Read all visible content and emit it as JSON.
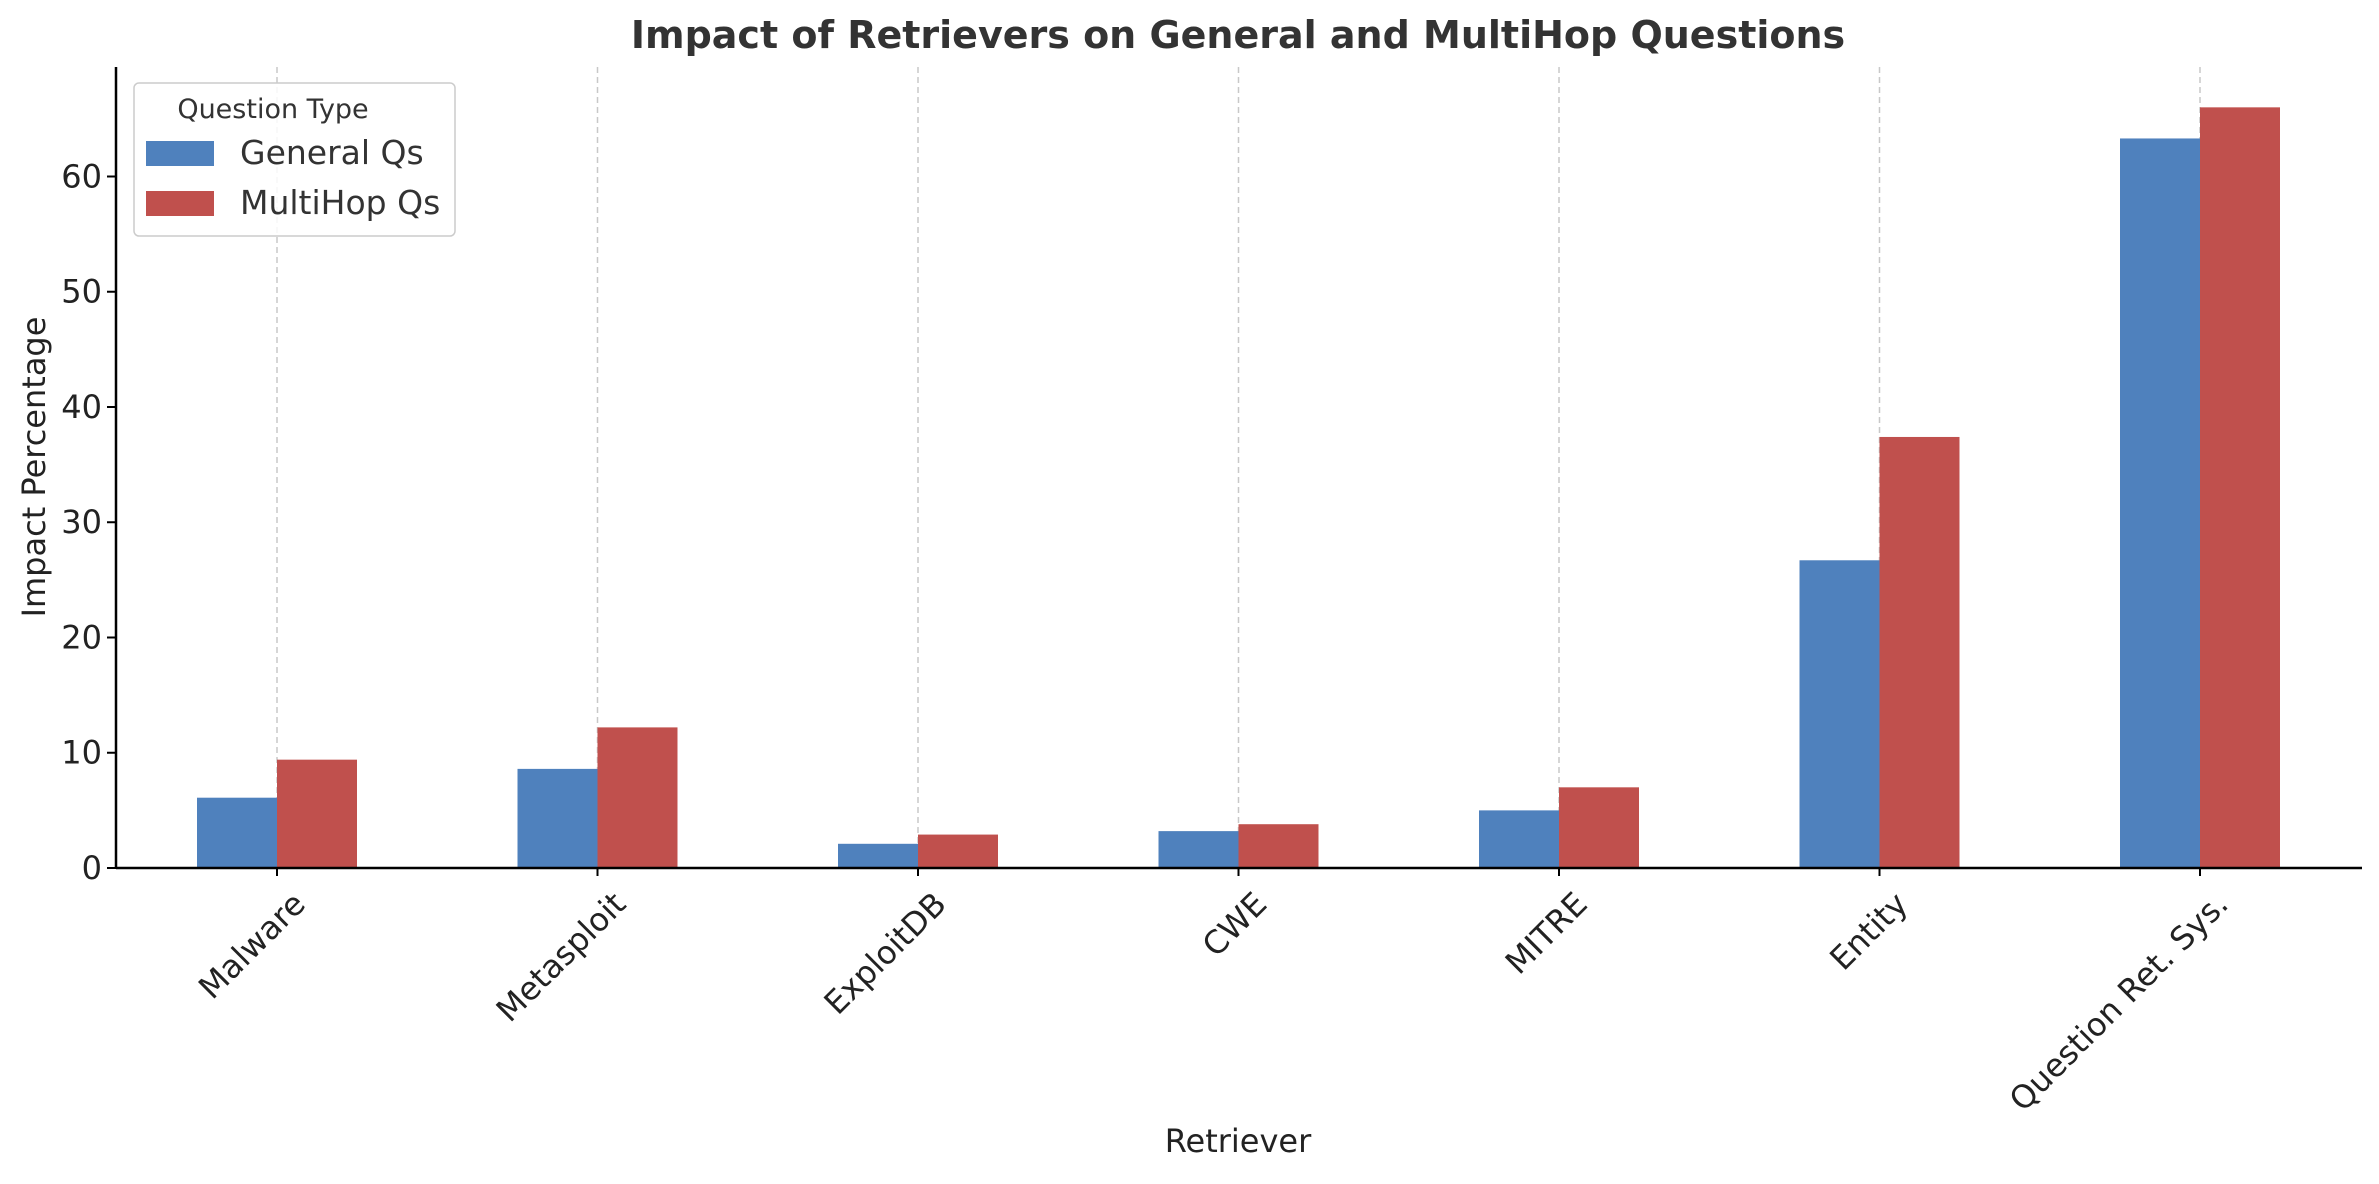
{
  "chart_data": {
    "type": "bar",
    "title": "Impact of Retrievers on General and MultiHop Questions",
    "xlabel": "Retriever",
    "ylabel": "Impact Percentage",
    "categories": [
      "Malware",
      "Metasploit",
      "ExploitDB",
      "CWE",
      "MITRE",
      "Entity",
      "Question Ret. Sys."
    ],
    "series": [
      {
        "name": "General Qs",
        "color": "#4f81bd",
        "values": [
          6.1,
          8.6,
          2.1,
          3.2,
          5.0,
          26.7,
          63.3
        ]
      },
      {
        "name": "MultiHop Qs",
        "color": "#c0504d",
        "values": [
          9.4,
          12.2,
          2.9,
          3.8,
          7.0,
          37.4,
          66.0
        ]
      }
    ],
    "ylim": [
      0,
      69.5
    ],
    "yticks": [
      0,
      10,
      20,
      30,
      40,
      50,
      60
    ],
    "grid": "vertical-dashed",
    "legend": {
      "title": "Question Type",
      "placement": "top-left"
    }
  }
}
